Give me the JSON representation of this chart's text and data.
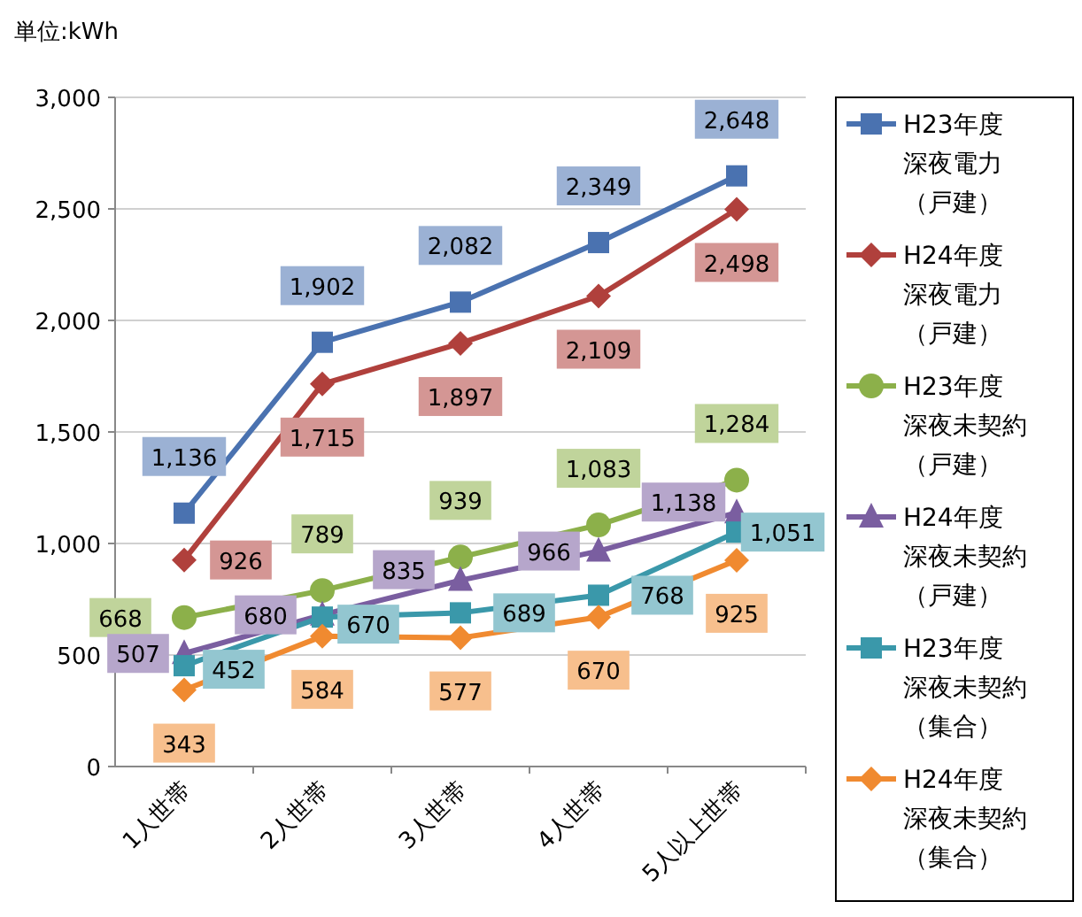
{
  "chart_data": {
    "type": "line",
    "ylabel": "単位:kWh",
    "categories": [
      "1人世帯",
      "2人世帯",
      "3人世帯",
      "4人世帯",
      "5人以上世帯"
    ],
    "ylim": [
      0,
      3000
    ],
    "yticks": [
      0,
      {
        "value": 500,
        "label": "500"
      },
      {
        "value": 1000,
        "label": "1,000"
      },
      {
        "value": 1500,
        "label": "1,500"
      },
      {
        "value": 2000,
        "label": "2,000"
      },
      {
        "value": 2500,
        "label": "2,500"
      },
      {
        "value": 3000,
        "label": "3,000"
      }
    ],
    "grid": "y",
    "legend": "right",
    "line_style": "solid",
    "series": [
      {
        "name": "H23年度深夜電力（戸建）",
        "color": "#4a72b0",
        "marker": "square",
        "values": [
          1136,
          1902,
          2082,
          2349,
          2648
        ],
        "value_labels": [
          "1,136",
          "1,902",
          "2,082",
          "2,349",
          "2,648"
        ]
      },
      {
        "name": "H24年度深夜電力（戸建）",
        "color": "#b0403c",
        "marker": "diamond",
        "values": [
          926,
          1715,
          1897,
          2109,
          2498
        ],
        "value_labels": [
          "926",
          "1,715",
          "1,897",
          "2,109",
          "2,498"
        ]
      },
      {
        "name": "H23年度深夜未契約（戸建）",
        "color": "#8cb04a",
        "marker": "circle",
        "values": [
          668,
          789,
          939,
          1083,
          1284
        ],
        "value_labels": [
          "668",
          "789",
          "939",
          "1,083",
          "1,284"
        ]
      },
      {
        "name": "H24年度深夜未契約（戸建）",
        "color": "#7a5ea0",
        "marker": "triangle",
        "values": [
          507,
          680,
          835,
          966,
          1138
        ],
        "value_labels": [
          "507",
          "680",
          "835",
          "966",
          "1,138"
        ]
      },
      {
        "name": "H23年度深夜未契約（集合）",
        "color": "#3a98aa",
        "marker": "square",
        "values": [
          452,
          670,
          689,
          768,
          1051
        ],
        "value_labels": [
          "452",
          "670",
          "689",
          "768",
          "1,051"
        ]
      },
      {
        "name": "H24年度深夜未契約（集合）",
        "color": "#f08a30",
        "marker": "diamond",
        "values": [
          343,
          584,
          577,
          670,
          925
        ],
        "value_labels": [
          "343",
          "584",
          "577",
          "670",
          "925"
        ]
      }
    ]
  }
}
